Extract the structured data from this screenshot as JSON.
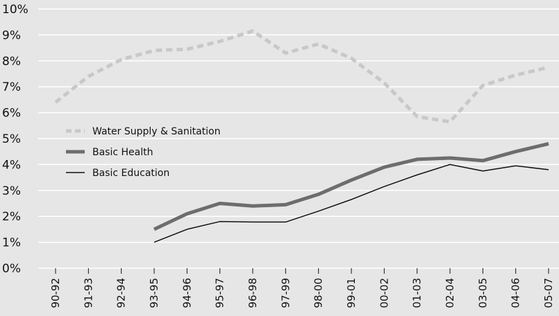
{
  "chart_data": {
    "type": "line",
    "title": "",
    "xlabel": "",
    "ylabel": "",
    "categories": [
      "90-92",
      "91-93",
      "92-94",
      "93-95",
      "94-96",
      "95-97",
      "96-98",
      "97-99",
      "98-00",
      "99-01",
      "00-02",
      "01-03",
      "02-04",
      "03-05",
      "04-06",
      "05-07"
    ],
    "ylim": [
      0,
      10
    ],
    "y_ticks": [
      "0%",
      "1%",
      "2%",
      "3%",
      "4%",
      "5%",
      "6%",
      "7%",
      "8%",
      "9%",
      "10%"
    ],
    "grid": "horizontal",
    "legend_position": "center-left",
    "series": [
      {
        "name": "Water Supply & Sanitation",
        "style": "dashed",
        "color": "#c8c8c8",
        "values": [
          6.4,
          7.4,
          8.05,
          8.4,
          8.45,
          8.75,
          9.15,
          8.3,
          8.65,
          8.1,
          7.15,
          5.85,
          5.65,
          7.05,
          7.45,
          7.75
        ]
      },
      {
        "name": "Basic Health",
        "style": "thick",
        "color": "#6d6d6d",
        "values": [
          null,
          null,
          null,
          1.5,
          2.1,
          2.5,
          2.4,
          2.45,
          2.85,
          3.4,
          3.9,
          4.2,
          4.25,
          4.15,
          4.5,
          4.8
        ]
      },
      {
        "name": "Basic Education",
        "style": "thin",
        "color": "#111111",
        "values": [
          null,
          null,
          null,
          1.0,
          1.5,
          1.8,
          1.78,
          1.78,
          2.2,
          2.65,
          3.15,
          3.6,
          4.0,
          3.75,
          3.95,
          3.8
        ]
      }
    ]
  }
}
